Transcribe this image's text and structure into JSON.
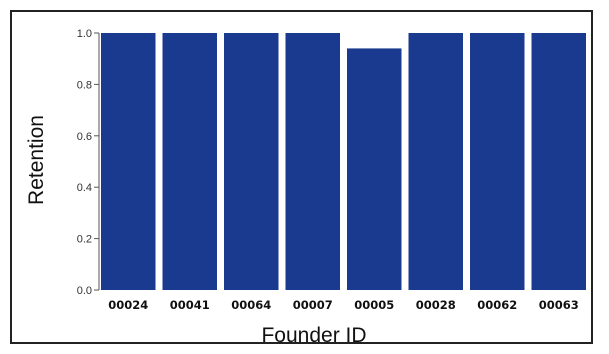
{
  "chart_data": {
    "type": "bar",
    "categories": [
      "00024",
      "00041",
      "00064",
      "00007",
      "00005",
      "00028",
      "00062",
      "00063"
    ],
    "values": [
      1.0,
      1.0,
      1.0,
      1.0,
      0.94,
      1.0,
      1.0,
      1.0
    ],
    "xlabel": "Founder ID",
    "ylabel": "Retention",
    "ylim": [
      0,
      1.0
    ],
    "yticks": [
      "0.0",
      "0.2",
      "0.4",
      "0.6",
      "0.8",
      "1.0"
    ],
    "grid": false,
    "bar_color": "#1a3a8f"
  }
}
